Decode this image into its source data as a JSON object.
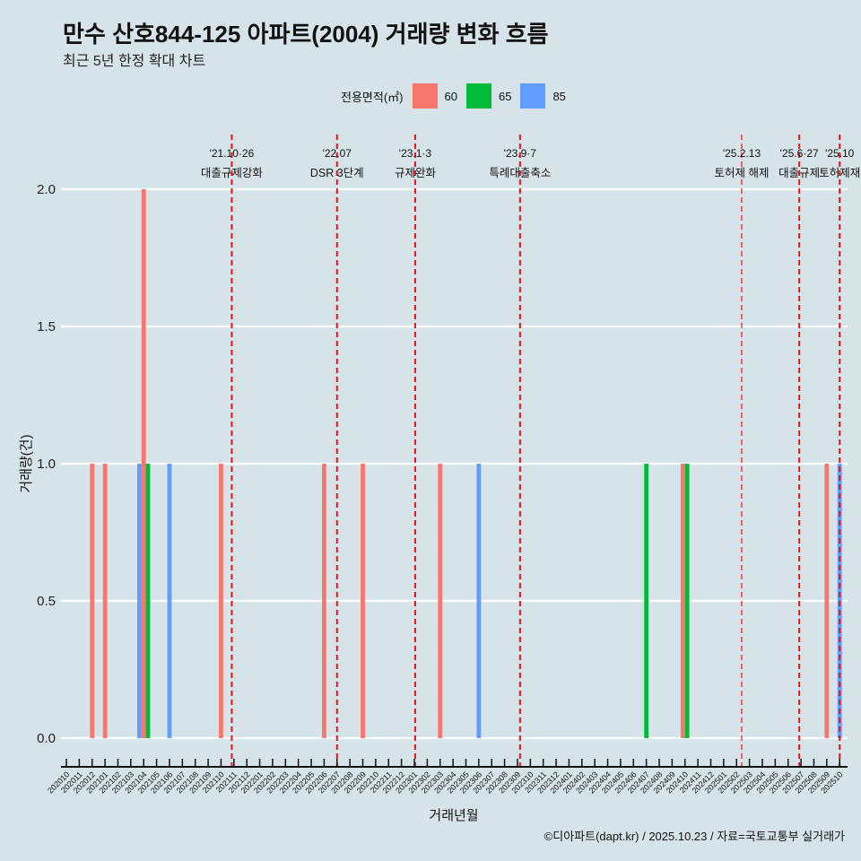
{
  "header": {
    "title": "만수 산호844-125 아파트(2004) 거래량 변화 흐름",
    "subtitle": "최근 5년 한정 확대 차트"
  },
  "caption": "©디아파트(dapt.kr) / 2025.10.23 / 자료=국토교통부 실거래가",
  "chart_data": {
    "type": "bar",
    "xlabel": "거래년월",
    "ylabel": "거래량(건)",
    "ylim": [
      0,
      2
    ],
    "yticks": [
      "0.0",
      "0.5",
      "1.0",
      "1.5",
      "2.0"
    ],
    "legend_title": "전용면적(㎡)",
    "legend_position": "top",
    "series_colors": {
      "60": "#f8766d",
      "65": "#00ba38",
      "85": "#619cff"
    },
    "legend": [
      {
        "name": "60",
        "color": "#f8766d"
      },
      {
        "name": "65",
        "color": "#00ba38"
      },
      {
        "name": "85",
        "color": "#619cff"
      }
    ],
    "categories": [
      "202010",
      "202011",
      "202012",
      "202101",
      "202102",
      "202103",
      "202104",
      "202105",
      "202106",
      "202107",
      "202108",
      "202109",
      "202110",
      "202111",
      "202112",
      "202201",
      "202202",
      "202203",
      "202204",
      "202205",
      "202206",
      "202207",
      "202208",
      "202209",
      "202210",
      "202211",
      "202212",
      "202301",
      "202302",
      "202303",
      "202304",
      "202305",
      "202306",
      "202307",
      "202308",
      "202309",
      "202310",
      "202311",
      "202312",
      "202401",
      "202402",
      "202403",
      "202404",
      "202405",
      "202406",
      "202407",
      "202408",
      "202409",
      "202410",
      "202411",
      "202412",
      "202501",
      "202502",
      "202503",
      "202504",
      "202505",
      "202506",
      "202507",
      "202508",
      "202509",
      "202510"
    ],
    "bars": [
      {
        "month": "202012",
        "area": "60",
        "value": 1
      },
      {
        "month": "202101",
        "area": "60",
        "value": 1
      },
      {
        "month": "202104",
        "area": "85",
        "value": 1
      },
      {
        "month": "202104",
        "area": "60",
        "value": 2
      },
      {
        "month": "202104",
        "area": "65",
        "value": 1
      },
      {
        "month": "202106",
        "area": "85",
        "value": 1
      },
      {
        "month": "202110",
        "area": "60",
        "value": 1
      },
      {
        "month": "202206",
        "area": "60",
        "value": 1
      },
      {
        "month": "202209",
        "area": "60",
        "value": 1
      },
      {
        "month": "202303",
        "area": "60",
        "value": 1
      },
      {
        "month": "202306",
        "area": "85",
        "value": 1
      },
      {
        "month": "202407",
        "area": "65",
        "value": 1
      },
      {
        "month": "202410",
        "area": "60",
        "value": 1
      },
      {
        "month": "202410",
        "area": "65",
        "value": 1
      },
      {
        "month": "202509",
        "area": "60",
        "value": 1
      },
      {
        "month": "202510",
        "area": "85",
        "value": 1
      }
    ],
    "events": [
      {
        "date": "2021-10-26",
        "label1": "'21.10·26",
        "label2": "대출규제강화"
      },
      {
        "date": "2022-07-01",
        "label1": "'22.07",
        "label2": "DSR 3단계"
      },
      {
        "date": "2023-01-03",
        "label1": "'23.1·3",
        "label2": "규제완화"
      },
      {
        "date": "2023-09-07",
        "label1": "'23.9·7",
        "label2": "특례대출축소"
      },
      {
        "date": "2025-02-13",
        "label1": "'25.2.13",
        "label2": "토허제 해제"
      },
      {
        "date": "2025-06-27",
        "label1": "'25.6·27",
        "label2": "대출규제"
      },
      {
        "date": "2025-10-01",
        "label1": "'25.10",
        "label2": "토허제재"
      }
    ]
  }
}
